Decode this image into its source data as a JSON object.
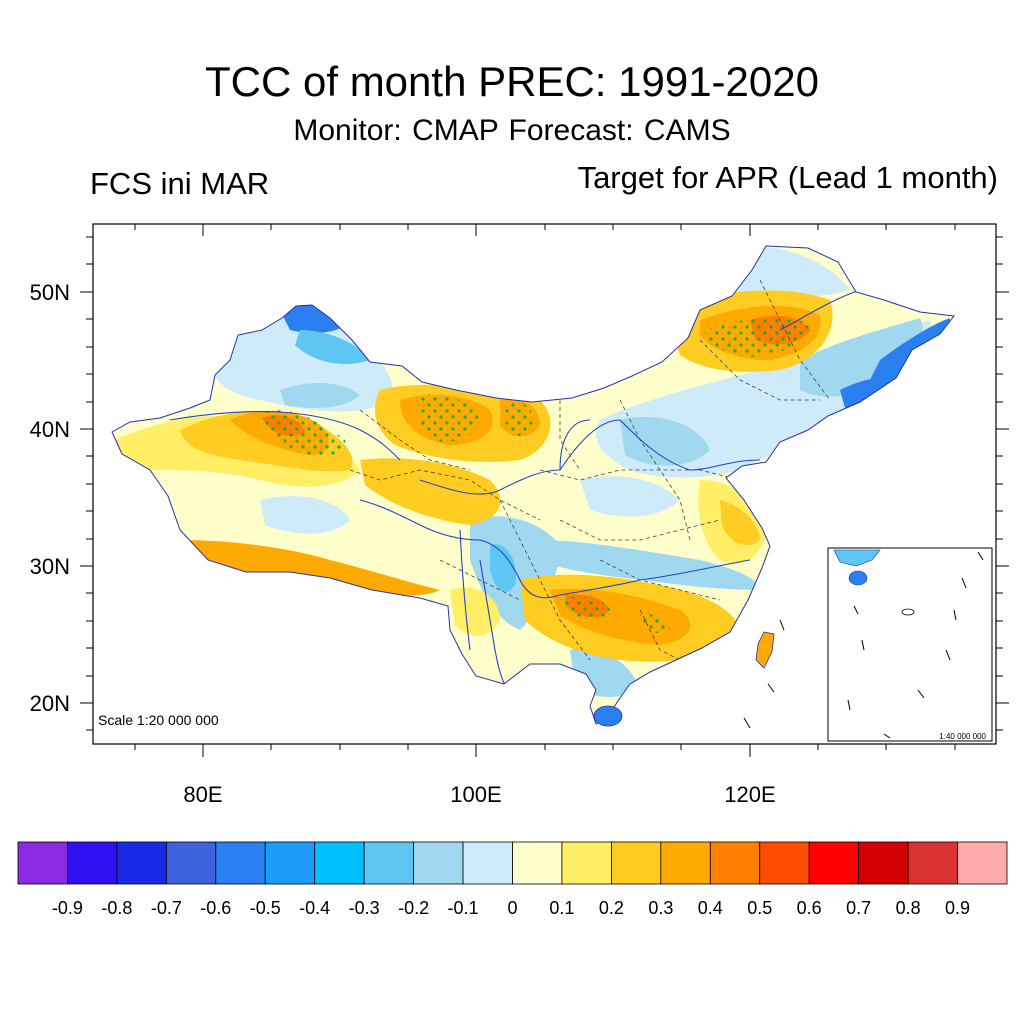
{
  "header": {
    "title": "TCC of month PREC: 1991-2020",
    "subtitle": "Monitor: CMAP   Forecast: CAMS",
    "left_label": "FCS ini MAR",
    "right_label": "Target for APR (Lead 1 month)"
  },
  "map": {
    "lat_ticks": [
      "50N",
      "40N",
      "30N",
      "20N"
    ],
    "lon_ticks": [
      "80E",
      "100E",
      "120E"
    ],
    "scale_text": "Scale 1:20 000 000",
    "inset_scale_text": "1:40 000 000"
  },
  "colorbar": {
    "colors": [
      "#8a2be2",
      "#3010f0",
      "#1a2ae8",
      "#3e62dc",
      "#2a80f0",
      "#1c9cf8",
      "#00bfff",
      "#5ec6f2",
      "#a0d8f0",
      "#cfeaf8",
      "#ffffcc",
      "#ffee66",
      "#ffcc22",
      "#ffaa00",
      "#ff8000",
      "#ff4c00",
      "#ff0000",
      "#d20000",
      "#d83232",
      "#ffaaaa"
    ],
    "labels": [
      "-0.9",
      "-0.8",
      "-0.7",
      "-0.6",
      "-0.5",
      "-0.4",
      "-0.3",
      "-0.2",
      "-0.1",
      "0",
      "0.1",
      "0.2",
      "0.3",
      "0.4",
      "0.5",
      "0.6",
      "0.7",
      "0.8",
      "0.9"
    ]
  }
}
